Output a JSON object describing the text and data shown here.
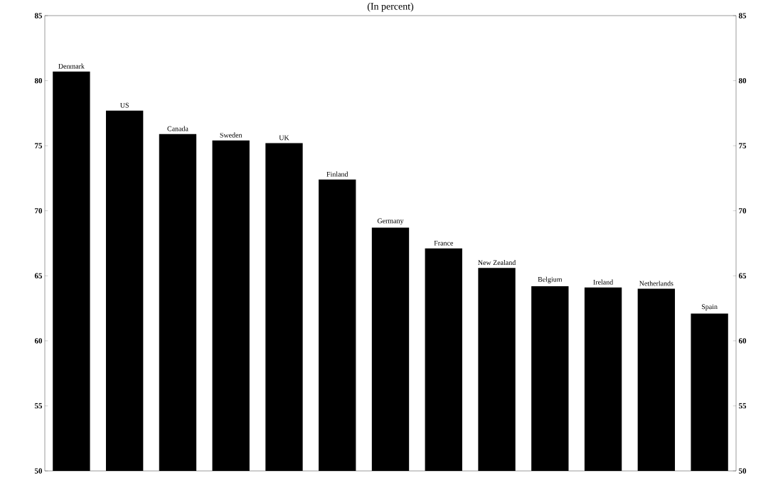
{
  "chart_data": {
    "type": "bar",
    "title": "(In percent)",
    "categories": [
      "Denmark",
      "US",
      "Canada",
      "Sweden",
      "UK",
      "Finland",
      "Germany",
      "France",
      "New Zealand",
      "Belgium",
      "Ireland",
      "Netherlands",
      "Spain"
    ],
    "values": [
      80.7,
      77.7,
      75.9,
      75.4,
      75.2,
      72.4,
      68.7,
      67.1,
      65.6,
      64.2,
      64.1,
      64.0,
      62.1
    ],
    "color": "#000000",
    "ylim": [
      50,
      85
    ],
    "yticks": [
      50,
      55,
      60,
      65,
      70,
      75,
      80,
      85
    ],
    "y2lim": [
      50,
      85
    ],
    "y2ticks": [
      50,
      55,
      60,
      65,
      70,
      75,
      80,
      85
    ],
    "grid": false
  }
}
